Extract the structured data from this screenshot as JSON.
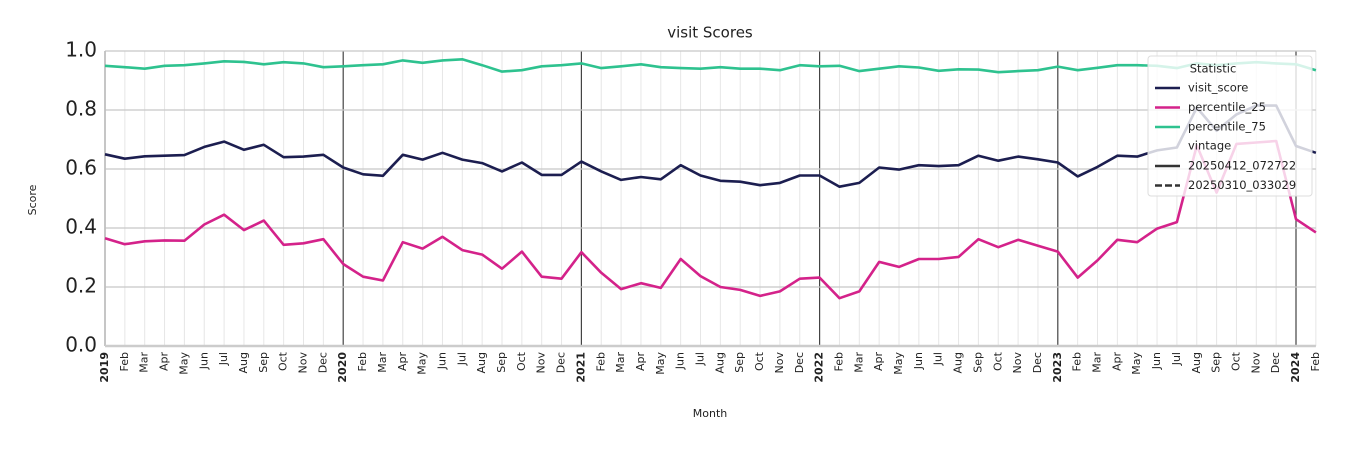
{
  "chart_data": {
    "type": "line",
    "title": "visit Scores",
    "xlabel": "Month",
    "ylabel": "Score",
    "categories": [
      "2019",
      "Feb",
      "Mar",
      "Apr",
      "May",
      "Jun",
      "Jul",
      "Aug",
      "Sep",
      "Oct",
      "Nov",
      "Dec",
      "2020",
      "Feb",
      "Mar",
      "Apr",
      "May",
      "Jun",
      "Jul",
      "Aug",
      "Sep",
      "Oct",
      "Nov",
      "Dec",
      "2021",
      "Feb",
      "Mar",
      "Apr",
      "May",
      "Jun",
      "Jul",
      "Aug",
      "Sep",
      "Oct",
      "Nov",
      "Dec",
      "2022",
      "Feb",
      "Mar",
      "Apr",
      "May",
      "Jun",
      "Jul",
      "Aug",
      "Sep",
      "Oct",
      "Nov",
      "Dec",
      "2023",
      "Feb",
      "Mar",
      "Apr",
      "May",
      "Jun",
      "Jul",
      "Aug",
      "Sep",
      "Oct",
      "Nov",
      "Dec",
      "2024",
      "Feb"
    ],
    "series": [
      {
        "name": "visit_score",
        "color": "#1c1e50",
        "values": [
          0.65,
          0.635,
          0.643,
          0.645,
          0.647,
          0.675,
          0.693,
          0.665,
          0.682,
          0.64,
          0.642,
          0.648,
          0.605,
          0.582,
          0.577,
          0.648,
          0.632,
          0.655,
          0.632,
          0.62,
          0.592,
          0.622,
          0.58,
          0.58,
          0.625,
          0.592,
          0.563,
          0.573,
          0.565,
          0.613,
          0.578,
          0.56,
          0.557,
          0.545,
          0.553,
          0.578,
          0.578,
          0.54,
          0.553,
          0.605,
          0.598,
          0.613,
          0.61,
          0.613,
          0.645,
          0.628,
          0.642,
          0.633,
          0.622,
          0.575,
          0.607,
          0.645,
          0.642,
          0.663,
          0.673,
          0.808,
          0.73,
          0.785,
          0.815,
          0.815,
          0.678,
          0.655
        ]
      },
      {
        "name": "percentile_25",
        "color": "#d4228a",
        "values": [
          0.365,
          0.345,
          0.355,
          0.358,
          0.357,
          0.412,
          0.445,
          0.393,
          0.425,
          0.343,
          0.348,
          0.362,
          0.278,
          0.235,
          0.222,
          0.352,
          0.33,
          0.37,
          0.325,
          0.31,
          0.262,
          0.32,
          0.235,
          0.228,
          0.318,
          0.248,
          0.193,
          0.213,
          0.197,
          0.295,
          0.237,
          0.2,
          0.19,
          0.17,
          0.185,
          0.228,
          0.232,
          0.162,
          0.185,
          0.285,
          0.268,
          0.295,
          0.295,
          0.302,
          0.362,
          0.335,
          0.36,
          0.34,
          0.32,
          0.232,
          0.29,
          0.36,
          0.352,
          0.398,
          0.42,
          0.68,
          0.52,
          0.685,
          0.69,
          0.695,
          0.43,
          0.385
        ]
      },
      {
        "name": "percentile_75",
        "color": "#2ec28f",
        "values": [
          0.95,
          0.945,
          0.94,
          0.95,
          0.952,
          0.958,
          0.965,
          0.963,
          0.955,
          0.962,
          0.958,
          0.945,
          0.948,
          0.952,
          0.955,
          0.968,
          0.96,
          0.968,
          0.972,
          0.952,
          0.93,
          0.935,
          0.948,
          0.952,
          0.958,
          0.942,
          0.948,
          0.955,
          0.945,
          0.942,
          0.94,
          0.945,
          0.94,
          0.94,
          0.935,
          0.952,
          0.948,
          0.95,
          0.932,
          0.94,
          0.948,
          0.944,
          0.933,
          0.938,
          0.937,
          0.928,
          0.932,
          0.935,
          0.947,
          0.935,
          0.943,
          0.952,
          0.952,
          0.95,
          0.942,
          0.958,
          0.952,
          0.958,
          0.962,
          0.958,
          0.955,
          0.935
        ]
      }
    ],
    "ylim": [
      0,
      1
    ],
    "yticks": [
      {
        "value": 0,
        "label": "0.0"
      },
      0.2,
      0.4,
      0.6,
      0.8,
      {
        "value": 1,
        "label": "1.0"
      }
    ],
    "grid": true,
    "legend": {
      "position": "upper right",
      "title": "Statistic",
      "vintage_title": "vintage",
      "vintages": [
        {
          "name": "20250412_072722",
          "dash": "solid"
        },
        {
          "name": "20250310_033029",
          "dash": "dashed"
        }
      ]
    }
  }
}
